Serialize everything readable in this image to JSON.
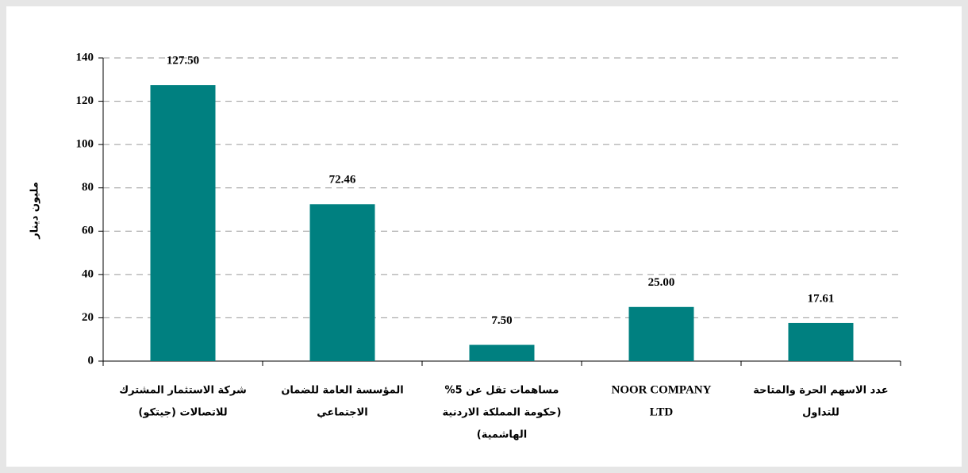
{
  "chart_data": {
    "type": "bar",
    "y_label": "مليون دينار",
    "categories": [
      [
        "شركة الاستثمار المشترك",
        "للاتصالات (جيتكو)"
      ],
      [
        "المؤسسة العامة للضمان",
        "الاجتماعي"
      ],
      [
        "مساهمات تقل عن 5%",
        "(حكومة المملكة الاردنية",
        "الهاشمية)"
      ],
      [
        "NOOR COMPANY",
        "LTD"
      ],
      [
        "عدد الاسهم الحرة والمتاحة",
        "للتداول"
      ]
    ],
    "values": [
      127.5,
      72.46,
      7.5,
      25,
      17.61
    ],
    "value_labels": [
      "127.50",
      "72.46",
      "7.50",
      "25.00",
      "17.61"
    ],
    "color": "#008080",
    "ylim": [
      0,
      140
    ],
    "yticks": [
      0,
      20,
      40,
      60,
      80,
      100,
      120,
      140
    ],
    "grid": true
  }
}
